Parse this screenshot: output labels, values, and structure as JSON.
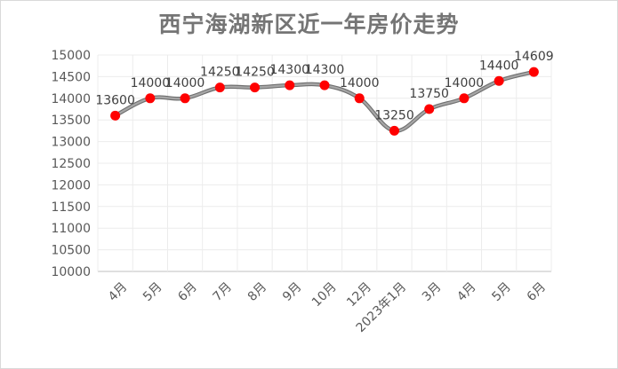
{
  "chart_data": {
    "type": "line",
    "title": "西宁海湖新区近一年房价走势",
    "xlabel": "",
    "ylabel": "",
    "categories": [
      "4月",
      "5月",
      "6月",
      "7月",
      "8月",
      "9月",
      "10月",
      "12月",
      "2023年1月",
      "3月",
      "4月",
      "5月",
      "6月"
    ],
    "series": [
      {
        "values": [
          13600,
          14000,
          14000,
          14250,
          14250,
          14300,
          14300,
          14000,
          13250,
          13750,
          14000,
          14400,
          14609
        ]
      }
    ],
    "data_labels": [
      "13600",
      "14000",
      "14000",
      "14250",
      "14250",
      "14300",
      "14300",
      "14000",
      "13250",
      "13750",
      "14000",
      "14400",
      "14609"
    ],
    "y_ticks": [
      "10000",
      "10500",
      "11000",
      "11500",
      "12000",
      "12500",
      "13000",
      "13500",
      "14000",
      "14500",
      "15000"
    ],
    "ylim": [
      10000,
      15000
    ],
    "grid": true,
    "legend": "none",
    "colors": {
      "line": "#a6a6a6",
      "marker": "#ff0000",
      "grid": "#ececec",
      "axis": "#bfbfbf"
    }
  }
}
